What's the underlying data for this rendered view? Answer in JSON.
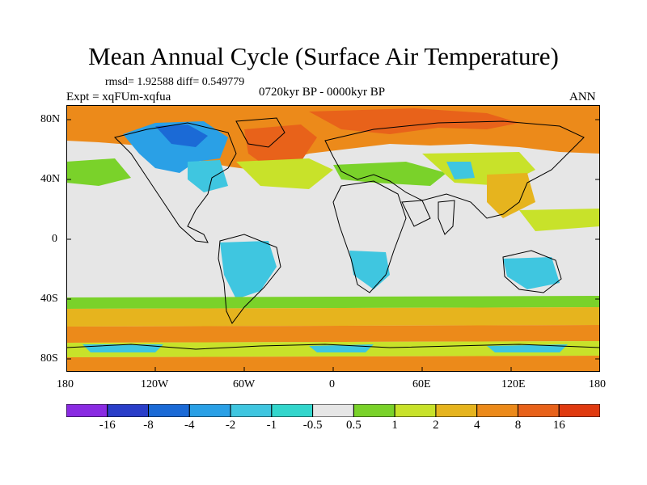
{
  "header": {
    "title": "Mean Annual Cycle (Surface Air Temperature)",
    "stats": "rmsd= 1.92588 diff= 0.549779",
    "experiment": "Expt = xqFUm-xqfua",
    "period": "0720kyr BP - 0000kyr BP",
    "season": "ANN"
  },
  "map": {
    "y_ticks": [
      "80N",
      "40N",
      "0",
      "40S",
      "80S"
    ],
    "x_ticks": [
      "180",
      "120W",
      "60W",
      "0",
      "60E",
      "120E",
      "180"
    ],
    "colors": {
      "ocean_neutral": "#e6e6e6",
      "coast": "#000000"
    }
  },
  "legend": {
    "labels": [
      "-16",
      "-8",
      "-4",
      "-2",
      "-1",
      "-0.5",
      "0.5",
      "1",
      "2",
      "4",
      "8",
      "16"
    ],
    "colors": [
      "#8a2be2",
      "#2a3ec9",
      "#1b6ad6",
      "#2aa0e6",
      "#3fc6e0",
      "#33d6cc",
      "#e6e6e6",
      "#7ad22a",
      "#c8e22a",
      "#e6b41e",
      "#ec8a1a",
      "#e8621a",
      "#e03a10"
    ]
  }
}
